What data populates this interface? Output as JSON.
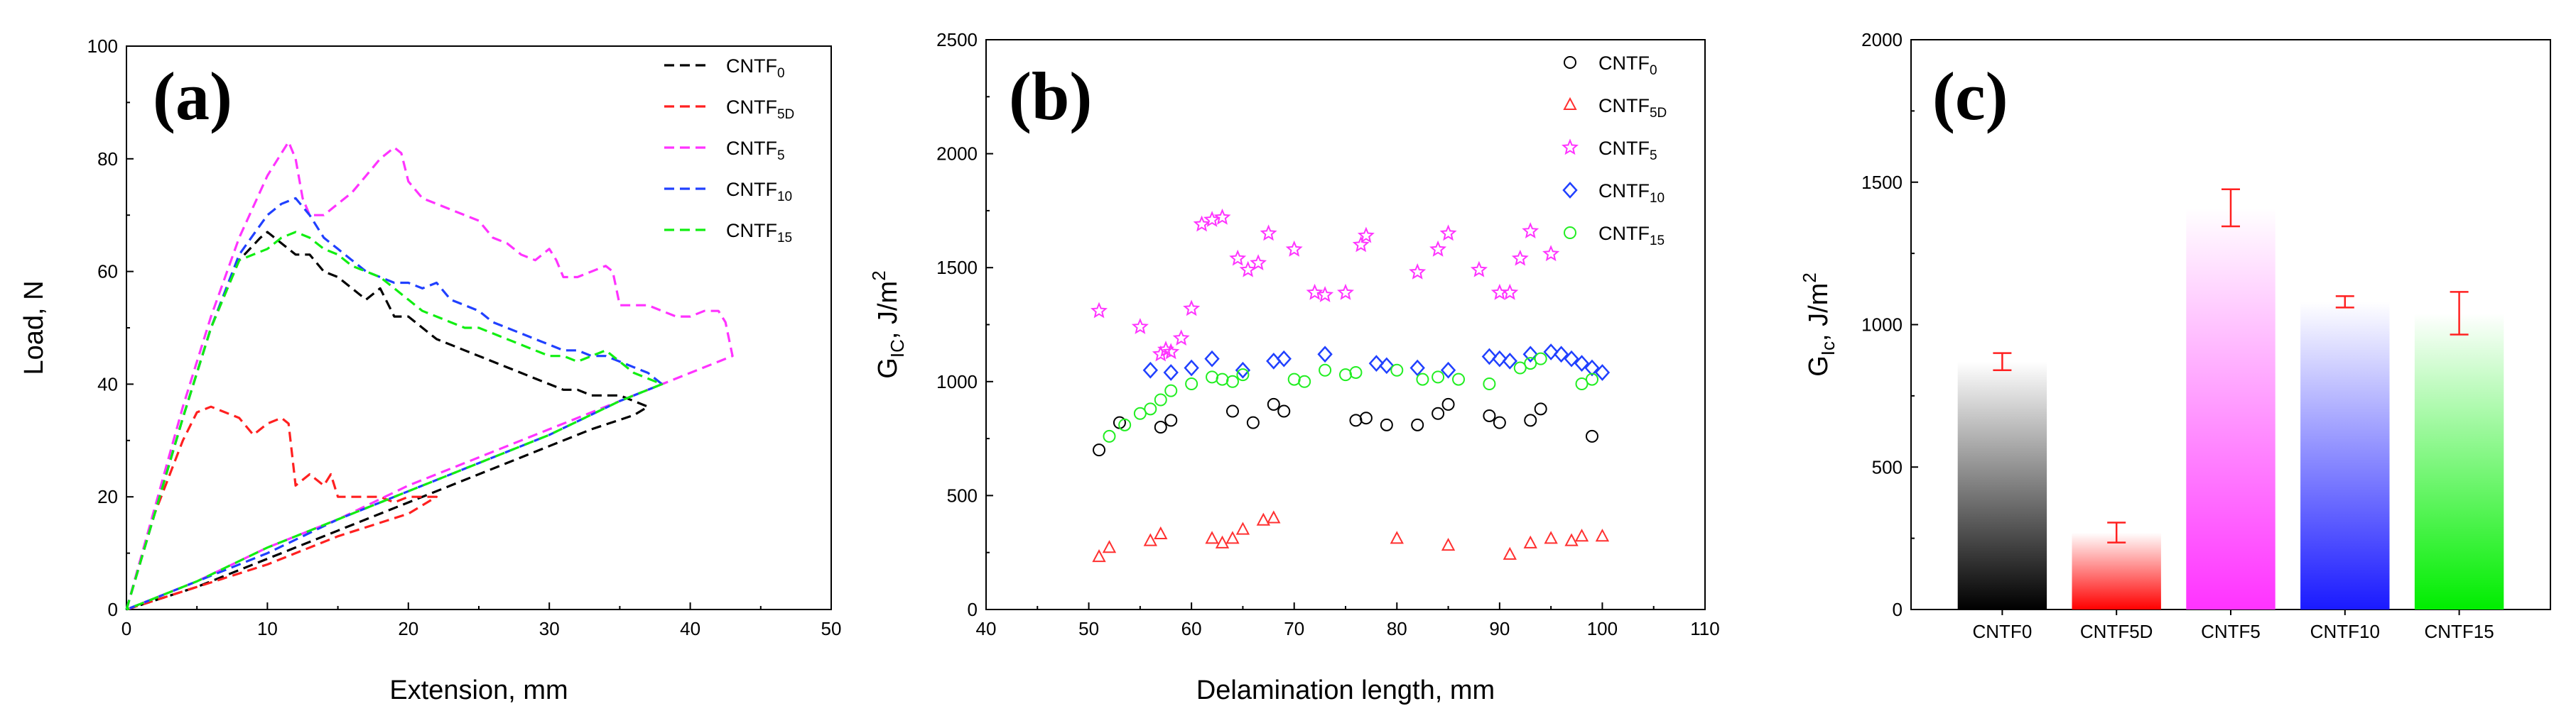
{
  "chart_data": [
    {
      "type": "line",
      "panel_label": "(a)",
      "xlabel": "Extension, mm",
      "ylabel": "Load, N",
      "xlim": [
        0,
        50
      ],
      "ylim": [
        0,
        100
      ],
      "xticks": [
        0,
        10,
        20,
        30,
        40,
        50
      ],
      "yticks": [
        0,
        20,
        40,
        60,
        80,
        100
      ],
      "legend_position": "top-right",
      "series": [
        {
          "name": "CNTF0",
          "name_base": "CNTF",
          "name_sub": "0",
          "color": "#000000",
          "x": [
            0,
            2,
            4,
            6,
            8,
            9.5,
            10,
            11,
            12,
            13,
            14,
            15,
            16,
            17,
            18,
            19,
            20,
            21,
            22,
            23,
            24,
            25,
            26,
            27,
            28,
            29,
            30,
            31,
            32,
            33,
            34,
            35,
            36,
            37,
            36,
            33,
            30,
            25,
            20,
            15,
            10,
            5,
            0
          ],
          "y": [
            0,
            17,
            34,
            50,
            62,
            66,
            67,
            65,
            63,
            63,
            60,
            59,
            57,
            55,
            57,
            52,
            52,
            50,
            48,
            47,
            46,
            45,
            44,
            43,
            42,
            41,
            40,
            39,
            39,
            38,
            38,
            38,
            37,
            36,
            34.5,
            32,
            29,
            24,
            19,
            14,
            9,
            4,
            0
          ]
        },
        {
          "name": "CNTF5D",
          "name_base": "CNTF",
          "name_sub": "5D",
          "color": "#ff2020",
          "x": [
            0,
            2,
            4,
            5,
            6,
            7,
            8,
            9,
            10,
            11,
            11.5,
            12,
            13,
            14,
            14.5,
            15,
            16,
            17,
            18,
            19,
            20,
            21,
            22,
            20,
            15,
            10,
            5,
            0
          ],
          "y": [
            0,
            17,
            30,
            35,
            36,
            35,
            34,
            31,
            33,
            34,
            33,
            22,
            24,
            22,
            24,
            20,
            20,
            20,
            20,
            19,
            20,
            20,
            20,
            17,
            13,
            8,
            4,
            0
          ]
        },
        {
          "name": "CNTF5",
          "name_base": "CNTF",
          "name_sub": "5",
          "color": "#ff33ff",
          "x": [
            0,
            2,
            4,
            6,
            8,
            10,
            11,
            11.5,
            12,
            12.5,
            13,
            14,
            15,
            16,
            17,
            18,
            19,
            19.5,
            20,
            21,
            22,
            23,
            24,
            25,
            26,
            27,
            28,
            29,
            30,
            30.5,
            31,
            32,
            33,
            34,
            34.5,
            35,
            36,
            37,
            38,
            39,
            40,
            41,
            42,
            42.5,
            43,
            40,
            35,
            30,
            25,
            20,
            15,
            10,
            5,
            0
          ],
          "y": [
            0,
            18,
            36,
            52,
            66,
            77,
            81,
            83,
            80,
            73,
            70,
            70,
            72,
            74,
            77,
            80,
            82,
            81,
            76,
            73,
            72,
            71,
            70,
            69,
            66,
            65,
            63,
            62,
            64,
            62,
            59,
            59,
            60,
            61,
            60,
            54,
            54,
            54,
            53,
            52,
            52,
            53,
            53,
            51,
            45,
            42,
            37,
            32,
            27,
            22,
            16,
            11,
            5,
            0
          ]
        },
        {
          "name": "CNTF10",
          "name_base": "CNTF",
          "name_sub": "10",
          "color": "#2040ff",
          "x": [
            0,
            2,
            4,
            6,
            8,
            10,
            11,
            12,
            13,
            14,
            15,
            16,
            17,
            18,
            19,
            20,
            21,
            22,
            23,
            24,
            25,
            26,
            27,
            28,
            29,
            30,
            31,
            32,
            33,
            34,
            35,
            36,
            37,
            38,
            35,
            30,
            25,
            20,
            15,
            10,
            5,
            0
          ],
          "y": [
            0,
            17,
            34,
            50,
            63,
            70,
            72,
            73,
            70,
            66,
            64,
            62,
            60,
            59,
            58,
            58,
            57,
            58,
            55,
            54,
            53,
            51,
            50,
            49,
            48,
            47,
            46,
            46,
            45,
            45,
            44,
            43,
            42,
            40,
            37,
            31,
            26,
            21,
            16,
            10,
            5,
            0
          ]
        },
        {
          "name": "CNTF15",
          "name_base": "CNTF",
          "name_sub": "15",
          "color": "#11ee11",
          "x": [
            0,
            2,
            4,
            6,
            8,
            10,
            11,
            12,
            13,
            14,
            15,
            16,
            17,
            18,
            19,
            20,
            21,
            22,
            23,
            24,
            25,
            26,
            27,
            28,
            29,
            30,
            31,
            32,
            33,
            34,
            35,
            36,
            37,
            38,
            35,
            30,
            25,
            20,
            15,
            10,
            5,
            0
          ],
          "y": [
            0,
            17,
            34,
            50,
            62,
            64,
            66,
            67,
            66,
            64,
            63,
            61,
            60,
            59,
            57,
            55,
            53,
            52,
            51,
            50,
            50,
            49,
            48,
            47,
            46,
            45,
            45,
            44,
            45,
            46,
            44,
            42,
            41,
            40,
            37,
            31,
            26,
            21,
            16,
            11,
            5,
            0
          ]
        }
      ]
    },
    {
      "type": "scatter",
      "panel_label": "(b)",
      "xlabel": "Delamination length, mm",
      "ylabel_base": "G",
      "ylabel_sub": "IC",
      "ylabel_rest": ", J/m",
      "ylabel_sup": "2",
      "xlim": [
        40,
        110
      ],
      "ylim": [
        0,
        2500
      ],
      "xticks": [
        40,
        50,
        60,
        70,
        80,
        90,
        100,
        110
      ],
      "yticks": [
        0,
        500,
        1000,
        1500,
        2000,
        2500
      ],
      "legend_position": "top-right",
      "series": [
        {
          "name": "CNTF0",
          "name_base": "CNTF",
          "name_sub": "0",
          "color": "#000000",
          "marker": "circle",
          "x": [
            51,
            53,
            57,
            58,
            64,
            66,
            68,
            69,
            76,
            77,
            79,
            82,
            84,
            85,
            89,
            90,
            93,
            94,
            99
          ],
          "y": [
            700,
            820,
            800,
            830,
            870,
            820,
            900,
            870,
            830,
            840,
            810,
            810,
            860,
            900,
            850,
            820,
            830,
            880,
            760
          ]
        },
        {
          "name": "CNTF5D",
          "name_base": "CNTF",
          "name_sub": "5D",
          "color": "#ff3030",
          "marker": "triangle",
          "x": [
            51,
            52,
            56,
            57,
            62,
            63,
            64,
            65,
            67,
            68,
            80,
            85,
            91,
            93,
            95,
            97,
            98,
            100
          ],
          "y": [
            230,
            270,
            300,
            330,
            310,
            290,
            310,
            350,
            390,
            400,
            310,
            280,
            240,
            290,
            310,
            300,
            320,
            320
          ]
        },
        {
          "name": "CNTF5",
          "name_base": "CNTF",
          "name_sub": "5",
          "color": "#ff33ff",
          "marker": "star",
          "x": [
            51,
            55,
            57,
            57.5,
            58,
            59,
            60,
            61,
            62,
            63,
            64.5,
            65.5,
            66.5,
            67.5,
            70,
            72,
            73,
            75,
            76.5,
            77,
            82,
            84,
            85,
            88,
            90,
            91,
            92,
            93,
            95
          ],
          "y": [
            1310,
            1240,
            1120,
            1140,
            1130,
            1190,
            1320,
            1690,
            1710,
            1720,
            1540,
            1490,
            1520,
            1650,
            1580,
            1390,
            1380,
            1390,
            1600,
            1640,
            1480,
            1580,
            1650,
            1490,
            1390,
            1390,
            1540,
            1660,
            1560
          ]
        },
        {
          "name": "CNTF10",
          "name_base": "CNTF",
          "name_sub": "10",
          "color": "#2040ff",
          "marker": "diamond",
          "x": [
            56,
            58,
            60,
            62,
            65,
            68,
            69,
            73,
            78,
            79,
            82,
            85,
            89,
            90,
            91,
            93,
            95,
            96,
            97,
            98,
            99,
            100
          ],
          "y": [
            1050,
            1040,
            1060,
            1100,
            1050,
            1090,
            1100,
            1120,
            1080,
            1070,
            1060,
            1050,
            1110,
            1100,
            1090,
            1120,
            1130,
            1120,
            1100,
            1080,
            1060,
            1040
          ]
        },
        {
          "name": "CNTF15",
          "name_base": "CNTF",
          "name_sub": "15",
          "color": "#22ee22",
          "marker": "circle",
          "x": [
            52,
            53.5,
            55,
            56,
            57,
            58,
            60,
            62,
            63,
            64,
            65,
            70,
            71,
            73,
            75,
            76,
            80,
            82.5,
            84,
            86,
            89,
            92,
            93,
            94,
            98,
            99
          ],
          "y": [
            760,
            810,
            860,
            880,
            920,
            960,
            990,
            1020,
            1010,
            1000,
            1030,
            1010,
            1000,
            1050,
            1030,
            1040,
            1050,
            1010,
            1020,
            1010,
            990,
            1060,
            1080,
            1100,
            990,
            1010
          ]
        }
      ]
    },
    {
      "type": "bar",
      "panel_label": "(c)",
      "xlabel": "",
      "ylabel_base": "G",
      "ylabel_sub": "Ic",
      "ylabel_rest": ", J/m",
      "ylabel_sup": "2",
      "ylim": [
        0,
        2000
      ],
      "yticks": [
        0,
        500,
        1000,
        1500,
        2000
      ],
      "categories": [
        "CNTF0",
        "CNTF5D",
        "CNTF5",
        "CNTF10",
        "CNTF15"
      ],
      "values": [
        870,
        270,
        1410,
        1080,
        1040
      ],
      "errors": [
        30,
        35,
        65,
        20,
        75
      ],
      "colors": [
        "#000000",
        "#ff0000",
        "#ff33ff",
        "#1a1aff",
        "#00ee00"
      ],
      "error_color": "#ff2020"
    }
  ]
}
